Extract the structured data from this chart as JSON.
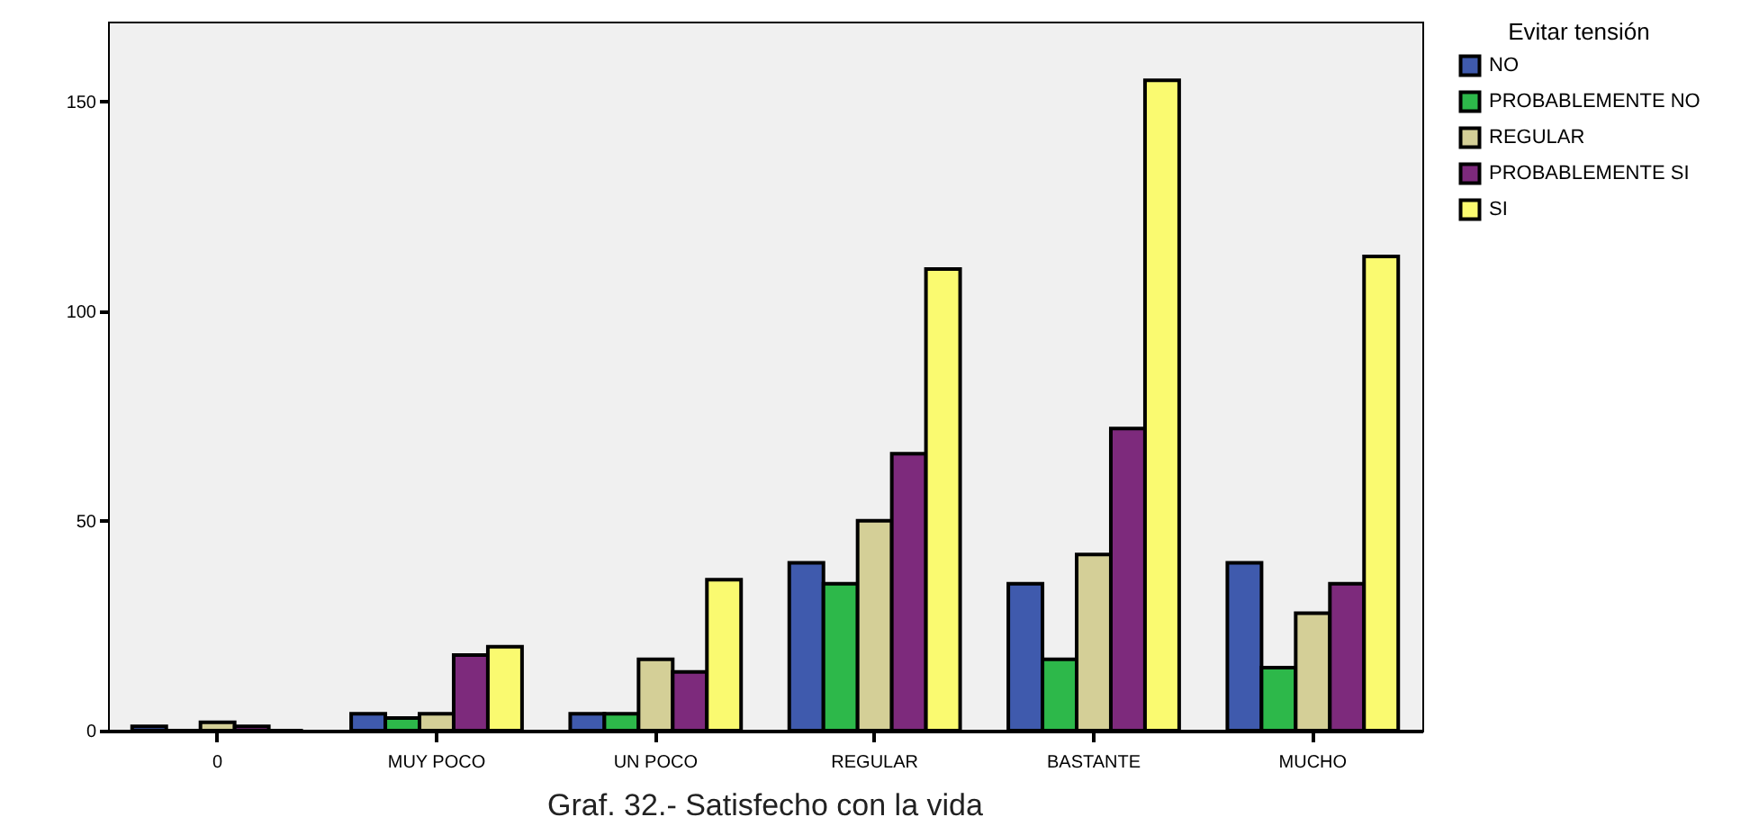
{
  "chart_data": {
    "type": "bar",
    "title": "Graf. 32.- Satisfecho con la vida",
    "legend_title": "Evitar tensión",
    "categories": [
      "0",
      "MUY POCO",
      "UN POCO",
      "REGULAR",
      "BASTANTE",
      "MUCHO"
    ],
    "series": [
      {
        "name": "NO",
        "color": "#3f5aad",
        "values": [
          1,
          4,
          4,
          40,
          35,
          40
        ]
      },
      {
        "name": "PROBABLEMENTE NO",
        "color": "#2db84a",
        "values": [
          0,
          3,
          4,
          35,
          17,
          15
        ]
      },
      {
        "name": "REGULAR",
        "color": "#d4cf97",
        "values": [
          2,
          4,
          17,
          50,
          42,
          28
        ]
      },
      {
        "name": "PROBABLEMENTE SI",
        "color": "#7d2a7c",
        "values": [
          1,
          18,
          14,
          66,
          72,
          35
        ]
      },
      {
        "name": "SI",
        "color": "#fafa70",
        "values": [
          0,
          20,
          36,
          110,
          155,
          113
        ]
      }
    ],
    "ylim": [
      0,
      169
    ],
    "yticks": [
      0,
      50,
      100,
      150
    ],
    "grid": false,
    "legend": "top right"
  }
}
